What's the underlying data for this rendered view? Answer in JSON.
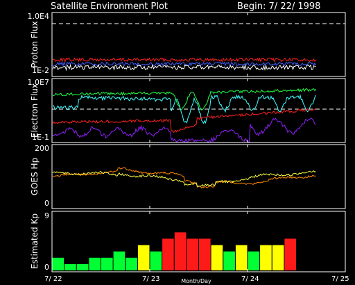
{
  "header": {
    "title": "Satellite Environment Plot",
    "begin_label": "Begin: 7/ 22/ 1998"
  },
  "panels": {
    "proton": {
      "ylabel": "Proton Flux",
      "ytick_top": "1.0E4",
      "ytick_bottom": "1E-2"
    },
    "electron": {
      "ylabel": "Electron Flux",
      "ytick_top": "1.0E7",
      "ytick_bottom": "1E-1"
    },
    "goes_hp": {
      "ylabel": "GOES Hp",
      "ytick_top": "200",
      "ytick_bottom": "0"
    },
    "kp": {
      "ylabel": "Estimated Kp",
      "ytick_top": "9",
      "ytick_bottom": "0"
    }
  },
  "xaxis": {
    "tick_labels": [
      "7/ 22",
      "7/ 23",
      "7/ 24",
      "7/ 25"
    ],
    "label": "Month/Day"
  },
  "colors": {
    "background": "#000000",
    "frame": "#ffffff",
    "kp_quiet": "#00ff33",
    "kp_unsettled": "#ffff00",
    "kp_storm": "#ff1a1a",
    "proton_red": "#ff2020",
    "proton_blue": "#4060ff",
    "proton_white": "#ffffff",
    "electron_green": "#20ff40",
    "electron_cyan": "#40ffff",
    "electron_red": "#ff2020",
    "electron_purple": "#9020ff",
    "hp_orange": "#ff8800",
    "hp_yellow": "#ffff40"
  },
  "chart_data": {
    "type": "bar",
    "x": [
      0.0625,
      0.1875,
      0.3125,
      0.4375,
      0.5625,
      0.6875,
      0.8125,
      0.9375,
      1.0625,
      1.1875,
      1.3125,
      1.4375,
      1.5625,
      1.6875,
      1.8125,
      1.9375,
      2.0625,
      2.1875,
      2.3125,
      2.4375
    ],
    "values": [
      2,
      1,
      1,
      2,
      2,
      3,
      2,
      4,
      3,
      5,
      6,
      5,
      5,
      4,
      3,
      4,
      3,
      4,
      4,
      5
    ],
    "xlabel": "Month/Day",
    "ylabel": "Estimated Kp",
    "ylim": [
      0,
      9
    ],
    "xlim": [
      0,
      3
    ],
    "xtick_labels": [
      "7/ 22",
      "7/ 23",
      "7/ 24",
      "7/ 25"
    ],
    "color_thresholds": {
      "quiet_below": 4,
      "storm_at_or_above": 5
    }
  }
}
